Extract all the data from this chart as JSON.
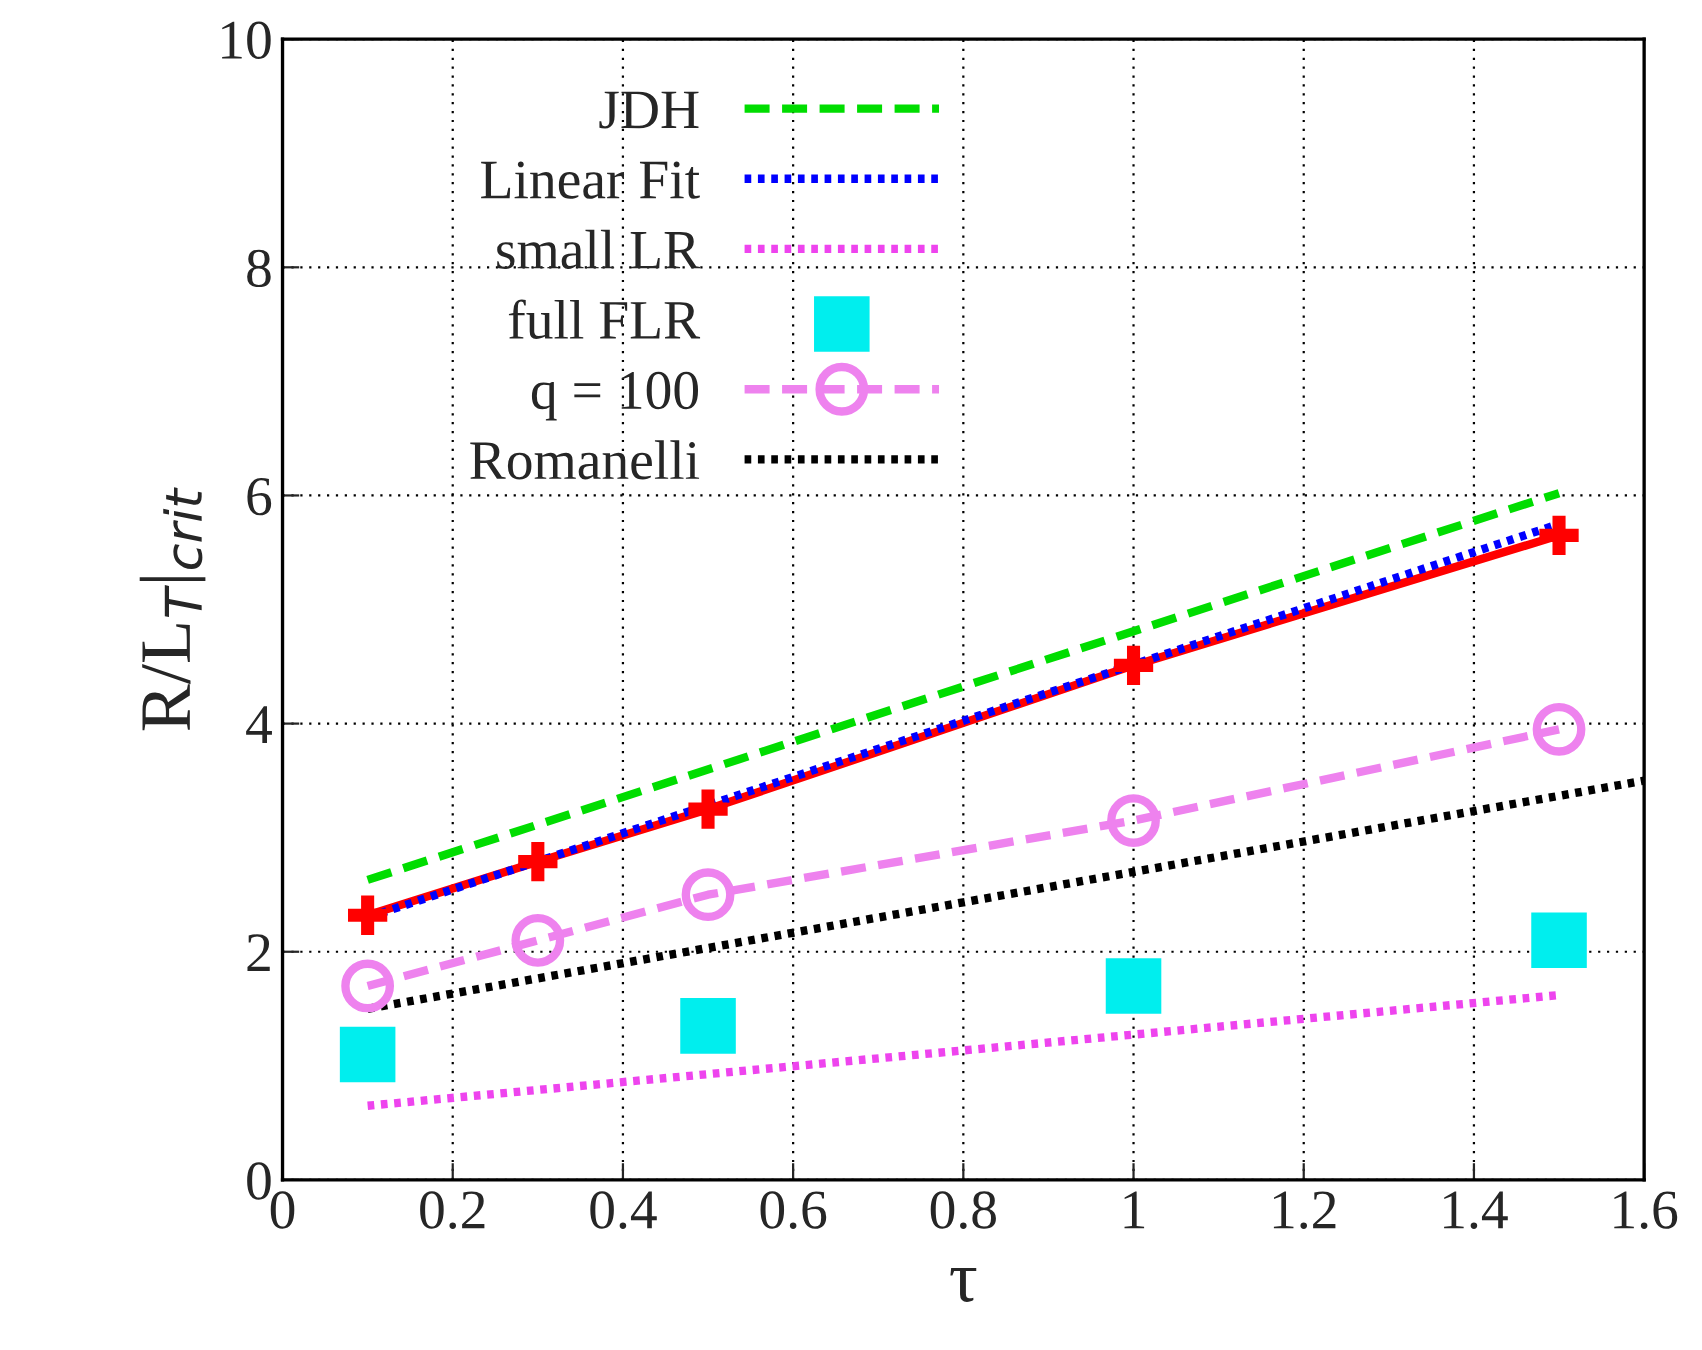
{
  "chart_data": {
    "type": "line",
    "xlabel": "τ",
    "ylabel": "R/L$_{T}$|$_{crit}$",
    "xlim": [
      0,
      1.6
    ],
    "ylim": [
      0,
      10
    ],
    "xticks": [
      0,
      0.2,
      0.4,
      0.6,
      0.8,
      1,
      1.2,
      1.4,
      1.6
    ],
    "yticks": [
      0,
      2,
      4,
      6,
      8,
      10
    ],
    "grid": true,
    "legend": "top left",
    "series": [
      {
        "color": "#ff0000",
        "marker": "cross",
        "line_style": "solid",
        "x": [
          0.1,
          0.3,
          0.5,
          1,
          1.5
        ],
        "values": [
          2.32,
          2.79,
          3.25,
          4.51,
          5.65
        ]
      },
      {
        "name": "JDH",
        "color": "#00dd00",
        "marker": "none",
        "line_style": "dashed",
        "x": [
          0.1,
          1.5
        ],
        "values": [
          2.63,
          6.02
        ]
      },
      {
        "name": "Linear Fit",
        "color": "#0000ff",
        "marker": "none",
        "line_style": "dotted",
        "x": [
          0.1,
          1.5
        ],
        "values": [
          2.3,
          5.75
        ]
      },
      {
        "name": "small LR",
        "color": "#ee44ee",
        "marker": "none",
        "line_style": "dotted",
        "x": [
          0.1,
          1.5
        ],
        "values": [
          0.65,
          1.62
        ]
      },
      {
        "name": "full FLR",
        "type": "scatter",
        "color": "#00eeee",
        "marker": "square",
        "x": [
          0.1,
          0.5,
          1,
          1.5
        ],
        "values": [
          1.1,
          1.35,
          1.7,
          2.1
        ]
      },
      {
        "name": "q = 100",
        "color": "#ee82ee",
        "marker": "circle",
        "line_style": "dashed",
        "x": [
          0.1,
          0.3,
          0.5,
          1,
          1.5
        ],
        "values": [
          1.7,
          2.1,
          2.5,
          3.15,
          3.95
        ]
      },
      {
        "name": "Romanelli",
        "color": "#000000",
        "marker": "none",
        "line_style": "dotted",
        "x": [
          0.1,
          1.6
        ],
        "values": [
          1.5,
          3.5
        ]
      }
    ]
  }
}
